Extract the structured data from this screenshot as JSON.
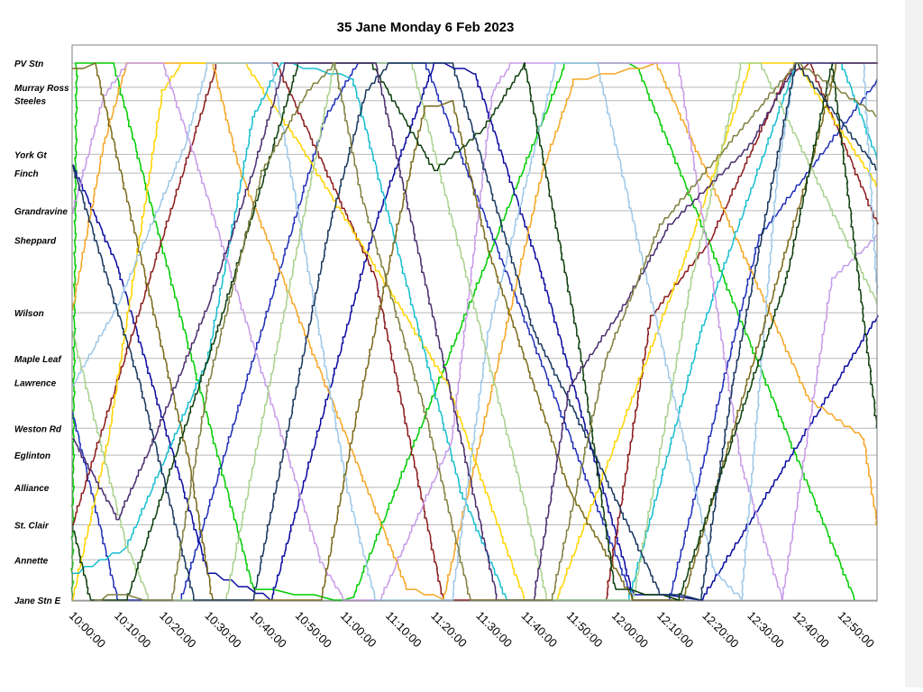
{
  "chart_data": {
    "type": "line",
    "title": "35 Jane Monday 6 Feb 2023",
    "xlabel": "",
    "ylabel": "",
    "x_unit": "time of day",
    "xlim": [
      "10:00:00",
      "12:58:00"
    ],
    "x_ticks": [
      "10:00:00",
      "10:10:00",
      "10:20:00",
      "10:30:00",
      "10:40:00",
      "10:50:00",
      "11:00:00",
      "11:10:00",
      "11:20:00",
      "11:30:00",
      "11:40:00",
      "11:50:00",
      "12:00:00",
      "12:10:00",
      "12:20:00",
      "12:30:00",
      "12:40:00",
      "12:50:00"
    ],
    "stops": [
      {
        "name": "PV Stn",
        "km": 0.0
      },
      {
        "name": "Murray Ross",
        "km": 0.45
      },
      {
        "name": "Steeles",
        "km": 0.7
      },
      {
        "name": "York Gt",
        "km": 1.7
      },
      {
        "name": "Finch",
        "km": 2.05
      },
      {
        "name": "Grandravine",
        "km": 2.75
      },
      {
        "name": "Sheppard",
        "km": 3.3
      },
      {
        "name": "Wilson",
        "km": 4.65
      },
      {
        "name": "Maple Leaf",
        "km": 5.5
      },
      {
        "name": "Lawrence",
        "km": 5.95
      },
      {
        "name": "Weston Rd",
        "km": 6.8
      },
      {
        "name": "Eglinton",
        "km": 7.3
      },
      {
        "name": "Alliance",
        "km": 7.9
      },
      {
        "name": "St. Clair",
        "km": 8.6
      },
      {
        "name": "Annette",
        "km": 9.25
      },
      {
        "name": "Jane Stn E",
        "km": 10.0
      }
    ],
    "y_axis_note": "stops listed top to bottom, PV Stn at top",
    "grid": true,
    "legend": "none",
    "series": [
      {
        "color": "#00cc00",
        "points": [
          [
            "10:00:00",
            10.0
          ],
          [
            "10:01:00",
            0.0
          ],
          [
            "10:09:00",
            0.0
          ],
          [
            "10:40:00",
            9.8
          ],
          [
            "10:58:00",
            10.0
          ],
          [
            "11:02:00",
            9.95
          ],
          [
            "11:49:00",
            0.0
          ],
          [
            "12:01:00",
            0.0
          ],
          [
            "12:05:00",
            0.1
          ],
          [
            "12:53:00",
            10.0
          ]
        ]
      },
      {
        "color": "#1f2fb8",
        "points": [
          [
            "10:00:00",
            6.5
          ],
          [
            "10:10:00",
            10.0
          ],
          [
            "10:24:00",
            10.0
          ],
          [
            "10:56:00",
            1.0
          ],
          [
            "11:03:00",
            0.0
          ],
          [
            "11:18:00",
            0.0
          ],
          [
            "12:04:00",
            10.0
          ],
          [
            "12:12:00",
            10.0
          ],
          [
            "12:32:00",
            3.2
          ],
          [
            "12:58:00",
            0.3
          ]
        ]
      },
      {
        "color": "#0a0aa0",
        "points": [
          [
            "10:00:00",
            1.9
          ],
          [
            "10:10:00",
            3.8
          ],
          [
            "10:30:00",
            9.5
          ],
          [
            "10:44:00",
            10.0
          ],
          [
            "11:07:00",
            3.0
          ],
          [
            "11:20:00",
            0.0
          ],
          [
            "11:29:00",
            0.2
          ],
          [
            "11:44:00",
            4.0
          ],
          [
            "12:04:00",
            9.9
          ],
          [
            "12:19:00",
            10.0
          ],
          [
            "12:58:00",
            4.7
          ]
        ]
      },
      {
        "color": "#8b1a1a",
        "points": [
          [
            "10:00:00",
            8.6
          ],
          [
            "10:32:00",
            0.0
          ],
          [
            "10:45:00",
            0.0
          ],
          [
            "11:07:00",
            4.0
          ],
          [
            "11:22:00",
            10.0
          ],
          [
            "11:58:00",
            10.0
          ],
          [
            "12:08:00",
            4.7
          ],
          [
            "12:21:00",
            3.3
          ],
          [
            "12:38:00",
            0.2
          ],
          [
            "12:43:00",
            0.0
          ],
          [
            "12:58:00",
            3.0
          ]
        ]
      },
      {
        "color": "#f5a623",
        "points": [
          [
            "10:00:00",
            4.6
          ],
          [
            "10:07:00",
            1.5
          ],
          [
            "10:12:00",
            0.0
          ],
          [
            "10:31:00",
            0.0
          ],
          [
            "10:37:00",
            2.0
          ],
          [
            "11:14:00",
            9.8
          ],
          [
            "11:22:00",
            10.0
          ],
          [
            "11:44:00",
            2.0
          ],
          [
            "11:51:00",
            0.3
          ],
          [
            "12:09:00",
            0.0
          ],
          [
            "12:20:00",
            2.0
          ],
          [
            "12:43:00",
            6.3
          ],
          [
            "12:55:00",
            7.0
          ],
          [
            "12:58:00",
            8.6
          ]
        ]
      },
      {
        "color": "#ffd400",
        "points": [
          [
            "10:00:00",
            10.0
          ],
          [
            "10:08:00",
            7.0
          ],
          [
            "10:20:00",
            0.5
          ],
          [
            "10:24:00",
            0.0
          ],
          [
            "10:38:00",
            0.0
          ],
          [
            "10:50:00",
            1.5
          ],
          [
            "11:23:00",
            6.0
          ],
          [
            "11:40:00",
            10.0
          ],
          [
            "11:47:00",
            10.0
          ],
          [
            "12:16:00",
            3.5
          ],
          [
            "12:30:00",
            0.0
          ],
          [
            "12:40:00",
            0.0
          ],
          [
            "12:58:00",
            2.3
          ]
        ]
      },
      {
        "color": "#17becf",
        "points": [
          [
            "10:00:00",
            9.5
          ],
          [
            "10:12:00",
            9.0
          ],
          [
            "10:30:00",
            5.5
          ],
          [
            "10:40:00",
            1.0
          ],
          [
            "10:46:00",
            0.0
          ],
          [
            "11:02:00",
            0.3
          ],
          [
            "11:26:00",
            8.0
          ],
          [
            "11:36:00",
            10.0
          ],
          [
            "12:03:00",
            10.0
          ],
          [
            "12:19:00",
            5.0
          ],
          [
            "12:40:00",
            0.0
          ],
          [
            "12:50:00",
            0.0
          ],
          [
            "12:58:00",
            1.8
          ]
        ]
      },
      {
        "color": "#c79be8",
        "points": [
          [
            "10:00:00",
            2.8
          ],
          [
            "10:07:00",
            0.6
          ],
          [
            "10:12:00",
            0.0
          ],
          [
            "10:20:00",
            0.0
          ],
          [
            "10:28:00",
            2.0
          ],
          [
            "10:55:00",
            9.3
          ],
          [
            "11:00:00",
            10.0
          ],
          [
            "11:08:00",
            10.0
          ],
          [
            "11:24:00",
            7.0
          ],
          [
            "11:33:00",
            0.5
          ],
          [
            "11:37:00",
            0.0
          ],
          [
            "12:14:00",
            0.0
          ],
          [
            "12:28:00",
            7.5
          ],
          [
            "12:37:00",
            10.0
          ],
          [
            "12:48:00",
            4.0
          ],
          [
            "12:58:00",
            3.2
          ]
        ]
      },
      {
        "color": "#9ec8e8",
        "points": [
          [
            "10:00:00",
            6.0
          ],
          [
            "10:10:00",
            4.5
          ],
          [
            "10:25:00",
            1.5
          ],
          [
            "10:30:00",
            0.0
          ],
          [
            "10:44:00",
            0.0
          ],
          [
            "11:01:00",
            8.0
          ],
          [
            "11:07:00",
            10.0
          ],
          [
            "11:24:00",
            10.0
          ],
          [
            "11:32:00",
            5.0
          ],
          [
            "11:47:00",
            0.0
          ],
          [
            "11:56:00",
            0.0
          ],
          [
            "12:22:00",
            9.5
          ],
          [
            "12:28:00",
            10.0
          ],
          [
            "12:36:00",
            2.0
          ],
          [
            "12:40:00",
            0.0
          ],
          [
            "12:55:00",
            0.0
          ],
          [
            "12:58:00",
            4.3
          ]
        ]
      },
      {
        "color": "#a9d18e",
        "points": [
          [
            "10:00:00",
            5.0
          ],
          [
            "10:12:00",
            9.0
          ],
          [
            "10:17:00",
            10.0
          ],
          [
            "10:34:00",
            10.0
          ],
          [
            "10:52:00",
            2.5
          ],
          [
            "10:58:00",
            0.0
          ],
          [
            "11:15:00",
            0.0
          ],
          [
            "11:38:00",
            7.5
          ],
          [
            "11:45:00",
            10.0
          ],
          [
            "12:04:00",
            10.0
          ],
          [
            "12:17:00",
            4.0
          ],
          [
            "12:28:00",
            0.0
          ],
          [
            "12:32:00",
            0.0
          ],
          [
            "12:58:00",
            4.5
          ]
        ]
      },
      {
        "color": "#7a6a1a",
        "points": [
          [
            "10:00:00",
            0.1
          ],
          [
            "10:05:00",
            0.0
          ],
          [
            "10:26:00",
            7.5
          ],
          [
            "10:31:00",
            10.0
          ],
          [
            "10:55:00",
            10.0
          ],
          [
            "11:03:00",
            6.5
          ],
          [
            "11:12:00",
            3.0
          ],
          [
            "11:18:00",
            0.8
          ],
          [
            "11:24:00",
            0.7
          ],
          [
            "11:32:00",
            3.5
          ],
          [
            "11:50:00",
            8.0
          ],
          [
            "12:04:00",
            10.0
          ],
          [
            "12:15:00",
            10.0
          ],
          [
            "12:43:00",
            2.0
          ],
          [
            "12:49:00",
            0.0
          ],
          [
            "12:58:00",
            0.0
          ]
        ]
      },
      {
        "color": "#0b3d0b",
        "points": [
          [
            "10:00:00",
            8.6
          ],
          [
            "10:04:00",
            10.0
          ],
          [
            "10:12:00",
            10.0
          ],
          [
            "10:32:00",
            5.0
          ],
          [
            "10:50:00",
            0.0
          ],
          [
            "11:06:00",
            0.0
          ],
          [
            "11:20:00",
            2.0
          ],
          [
            "11:31:00",
            1.2
          ],
          [
            "11:40:00",
            0.0
          ],
          [
            "11:52:00",
            5.2
          ],
          [
            "12:00:00",
            9.8
          ],
          [
            "12:14:00",
            10.0
          ],
          [
            "12:38:00",
            4.0
          ],
          [
            "12:48:00",
            0.0
          ],
          [
            "12:58:00",
            6.8
          ]
        ]
      },
      {
        "color": "#17365d",
        "points": [
          [
            "10:00:00",
            1.9
          ],
          [
            "10:15:00",
            6.0
          ],
          [
            "10:27:00",
            10.0
          ],
          [
            "10:40:00",
            10.0
          ],
          [
            "10:57:00",
            3.0
          ],
          [
            "11:05:00",
            0.5
          ],
          [
            "11:10:00",
            0.0
          ],
          [
            "11:24:00",
            0.0
          ],
          [
            "11:42:00",
            5.0
          ],
          [
            "11:51:00",
            6.5
          ],
          [
            "12:10:00",
            9.9
          ],
          [
            "12:19:00",
            10.0
          ],
          [
            "12:26:00",
            6.0
          ],
          [
            "12:40:00",
            0.0
          ],
          [
            "12:58:00",
            2.0
          ]
        ]
      },
      {
        "color": "#4a2c6e",
        "points": [
          [
            "10:00:00",
            7.0
          ],
          [
            "10:10:00",
            8.5
          ],
          [
            "10:18:00",
            7.0
          ],
          [
            "10:30:00",
            4.5
          ],
          [
            "10:40:00",
            2.0
          ],
          [
            "10:47:00",
            0.0
          ],
          [
            "11:07:00",
            0.0
          ],
          [
            "11:30:00",
            8.5
          ],
          [
            "11:34:00",
            10.0
          ],
          [
            "11:42:00",
            10.0
          ],
          [
            "11:50:00",
            6.0
          ],
          [
            "12:02:00",
            4.5
          ],
          [
            "12:12:00",
            3.0
          ],
          [
            "12:30:00",
            1.5
          ],
          [
            "12:40:00",
            0.0
          ],
          [
            "12:58:00",
            0.0
          ]
        ]
      },
      {
        "color": "#7f7f3f",
        "points": [
          [
            "10:05:00",
            10.0
          ],
          [
            "10:08:00",
            9.9
          ],
          [
            "10:16:00",
            10.0
          ],
          [
            "10:22:00",
            10.0
          ],
          [
            "10:30:00",
            6.0
          ],
          [
            "10:42:00",
            2.0
          ],
          [
            "10:52:00",
            0.5
          ],
          [
            "10:58:00",
            0.0
          ],
          [
            "11:04:00",
            2.5
          ],
          [
            "11:18:00",
            6.5
          ],
          [
            "11:28:00",
            10.0
          ],
          [
            "11:46:00",
            10.0
          ],
          [
            "11:58:00",
            5.5
          ],
          [
            "12:10:00",
            3.0
          ],
          [
            "12:30:00",
            1.0
          ],
          [
            "12:40:00",
            0.0
          ],
          [
            "12:58:00",
            1.0
          ]
        ]
      }
    ]
  }
}
